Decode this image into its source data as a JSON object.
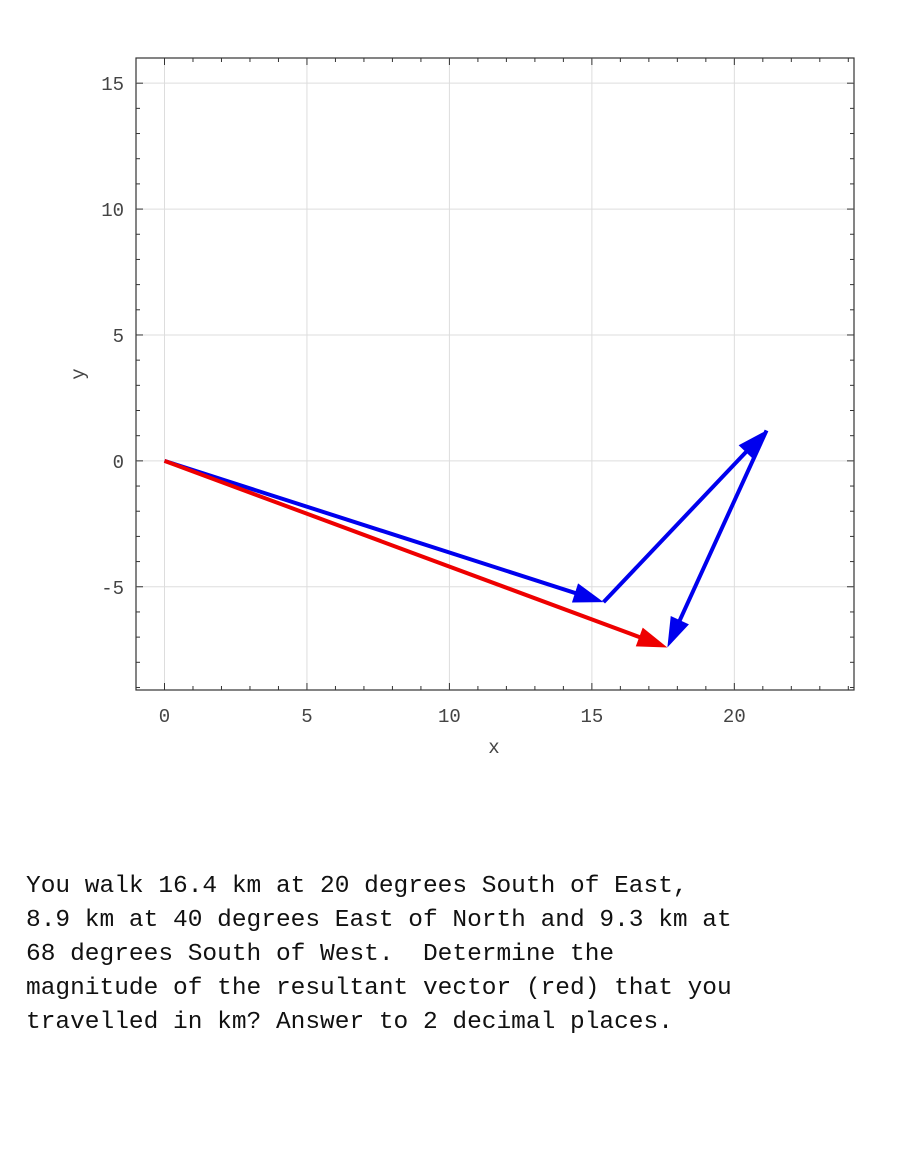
{
  "chart_data": {
    "type": "vector-plot",
    "xlabel": "x",
    "ylabel": "y",
    "xlim": [
      -1,
      24.2
    ],
    "ylim": [
      -9.1,
      16
    ],
    "xticks": [
      0,
      5,
      10,
      15,
      20
    ],
    "yticks": [
      -5,
      0,
      5,
      10,
      15
    ],
    "grid": true,
    "vectors": [
      {
        "role": "component",
        "color": "#0000ee",
        "from": [
          0,
          0
        ],
        "to": [
          15.41,
          -5.61
        ]
      },
      {
        "role": "component",
        "color": "#0000ee",
        "from": [
          15.41,
          -5.61
        ],
        "to": [
          21.13,
          1.21
        ]
      },
      {
        "role": "component",
        "color": "#0000ee",
        "from": [
          21.13,
          1.21
        ],
        "to": [
          17.65,
          -7.41
        ]
      },
      {
        "role": "resultant",
        "color": "#ee0000",
        "from": [
          0,
          0
        ],
        "to": [
          17.65,
          -7.41
        ]
      }
    ]
  },
  "question": {
    "lines": [
      "You walk 16.4 km at 20 degrees South of East,",
      "8.9 km at 40 degrees East of North and 9.3 km at",
      "68 degrees South of West.  Determine the",
      "magnitude of the resultant vector (red) that you",
      "travelled in km? Answer to 2 decimal places."
    ]
  }
}
